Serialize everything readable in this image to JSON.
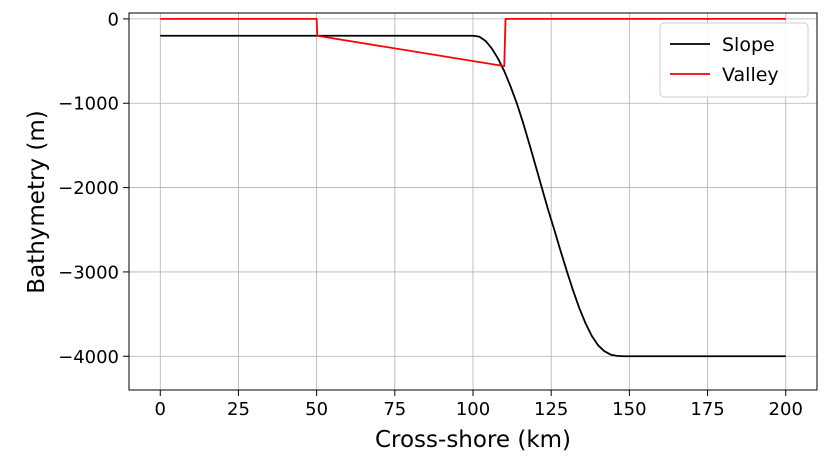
{
  "chart_data": {
    "type": "line",
    "title": "",
    "xlabel": "Cross-shore (km)",
    "ylabel": "Bathymetry (m)",
    "xlim": [
      -10,
      210
    ],
    "ylim": [
      -4400,
      70
    ],
    "grid": true,
    "legend_position": "top-right",
    "x_ticks": [
      0,
      25,
      50,
      75,
      100,
      125,
      150,
      175,
      200
    ],
    "x_tick_labels": [
      "0",
      "25",
      "50",
      "75",
      "100",
      "125",
      "150",
      "175",
      "200"
    ],
    "y_ticks": [
      0,
      -1000,
      -2000,
      -3000,
      -4000
    ],
    "y_tick_labels": [
      "0",
      "−1000",
      "−2000",
      "−3000",
      "−4000"
    ],
    "series": [
      {
        "name": "Slope",
        "color": "#000000",
        "x": [
          0,
          100,
          102,
          104,
          106,
          108,
          110,
          112,
          114,
          116,
          118,
          120,
          122,
          124,
          125,
          126,
          128,
          130,
          132,
          134,
          136,
          138,
          140,
          142,
          144,
          146,
          148,
          150,
          200
        ],
        "y": [
          -200,
          -200,
          -210,
          -260,
          -350,
          -470,
          -620,
          -800,
          -1000,
          -1230,
          -1480,
          -1740,
          -2000,
          -2260,
          -2380,
          -2500,
          -2750,
          -2990,
          -3220,
          -3430,
          -3610,
          -3760,
          -3870,
          -3940,
          -3980,
          -3995,
          -4000,
          -4000,
          -4000
        ]
      },
      {
        "name": "Valley",
        "color": "#ff0000",
        "x": [
          0,
          50,
          50.2,
          110,
          110.4,
          200
        ],
        "y": [
          0,
          0,
          -200,
          -560,
          0,
          0
        ]
      }
    ]
  }
}
